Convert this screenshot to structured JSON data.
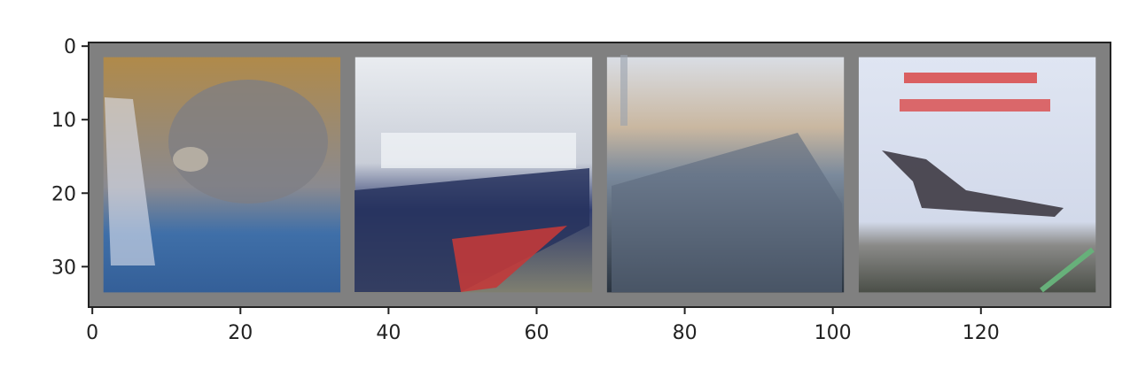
{
  "chart_data": {
    "type": "image",
    "title": "",
    "xlabel": "",
    "ylabel": "",
    "xlim": [
      -0.5,
      137.5
    ],
    "ylim": [
      35.5,
      -0.5
    ],
    "x_ticks": [
      0,
      20,
      40,
      60,
      80,
      100,
      120
    ],
    "y_ticks": [
      0,
      10,
      20,
      30
    ],
    "x_tick_labels": [
      "0",
      "20",
      "40",
      "60",
      "80",
      "100",
      "120"
    ],
    "y_tick_labels": [
      "0",
      "10",
      "20",
      "30"
    ],
    "grid": false,
    "padding_color": "#808080",
    "tiles": [
      {
        "subject": "cat",
        "x_range": [
          2,
          33
        ],
        "y_range": [
          2,
          33
        ],
        "colors": [
          "#b08a4a",
          "#8a8a90",
          "#3f6fa8"
        ]
      },
      {
        "subject": "ship",
        "x_range": [
          36,
          67
        ],
        "y_range": [
          2,
          33
        ],
        "colors": [
          "#e9ecf0",
          "#2f3c6e",
          "#b83a3a"
        ]
      },
      {
        "subject": "ship",
        "x_range": [
          70,
          101
        ],
        "y_range": [
          2,
          33
        ],
        "colors": [
          "#d9dde4",
          "#7b8a9c",
          "#2a3440"
        ]
      },
      {
        "subject": "airplane",
        "x_range": [
          104,
          135
        ],
        "y_range": [
          2,
          33
        ],
        "colors": [
          "#dfe5f2",
          "#4a4a58",
          "#e05050"
        ]
      }
    ]
  }
}
